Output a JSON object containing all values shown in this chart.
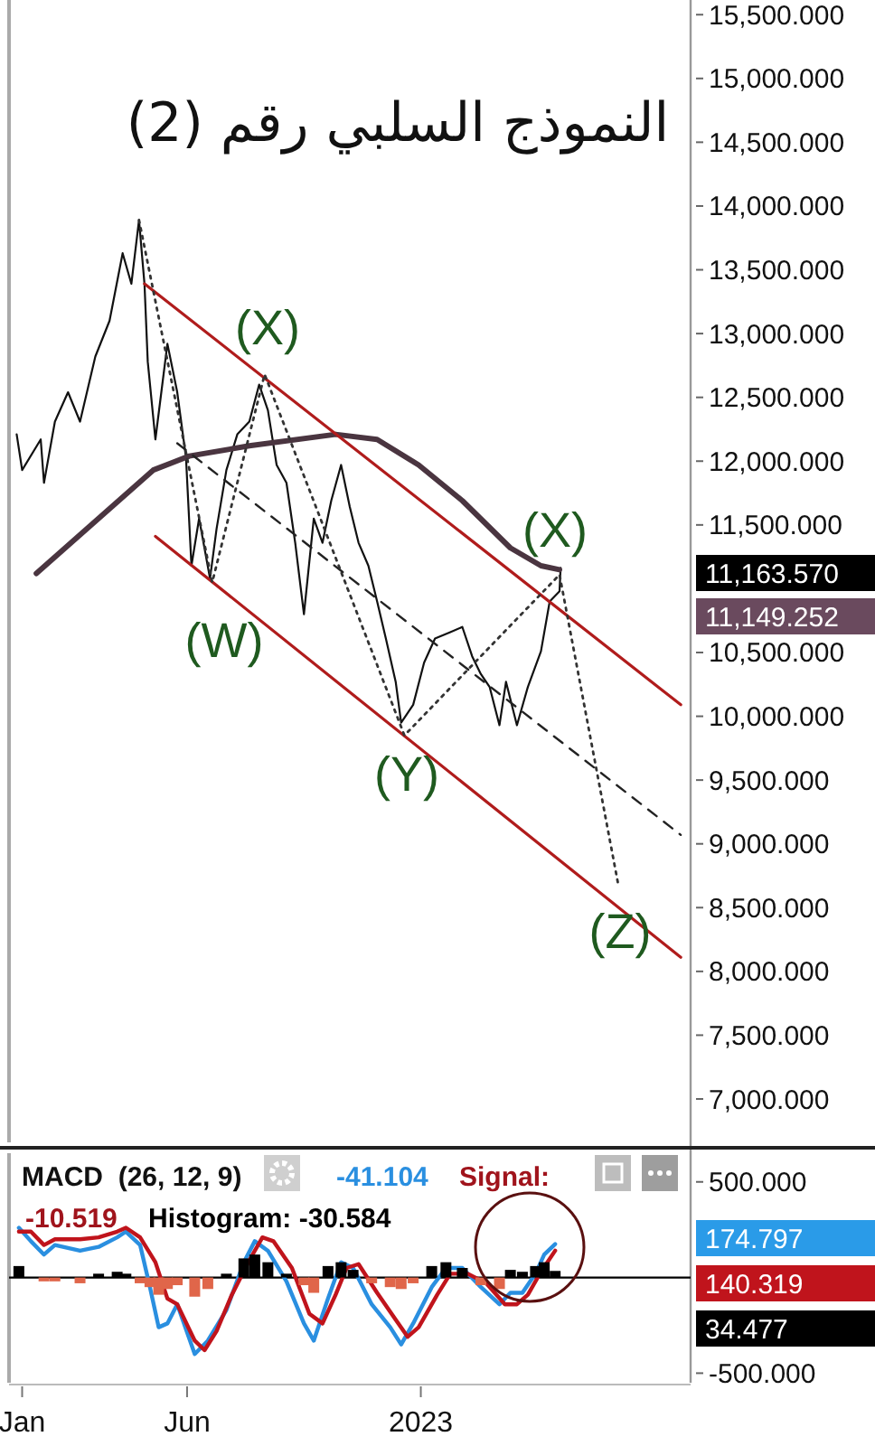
{
  "chart_data": [
    {
      "type": "line",
      "title": "النموذج السلبي رقم (2)",
      "xlim": [
        "2021-12-20",
        "2023-09-05"
      ],
      "ylim": [
        6660,
        15615
      ],
      "tick_labels": "y",
      "yticks": [
        {
          "value": 15500,
          "label": "15,500.000"
        },
        {
          "value": 15000,
          "label": "15,000.000"
        },
        {
          "value": 14500,
          "label": "14,500.000"
        },
        {
          "value": 14000,
          "label": "14,000.000"
        },
        {
          "value": 13500,
          "label": "13,500.000"
        },
        {
          "value": 13000,
          "label": "13,000.000"
        },
        {
          "value": 12500,
          "label": "12,500.000"
        },
        {
          "value": 12000,
          "label": "12,000.000"
        },
        {
          "value": 11500,
          "label": "11,500.000"
        },
        {
          "value": 10500,
          "label": "10,500.000"
        },
        {
          "value": 10000,
          "label": "10,000.000"
        },
        {
          "value": 9500,
          "label": "9,500.000"
        },
        {
          "value": 9000,
          "label": "9,000.000"
        },
        {
          "value": 8500,
          "label": "8,500.000"
        },
        {
          "value": 8000,
          "label": "8,000.000"
        },
        {
          "value": 7500,
          "label": "7,500.000"
        },
        {
          "value": 7000,
          "label": "7,000.000"
        }
      ],
      "series": [
        {
          "color": "#111111",
          "x": [
            "2021-12-27",
            "2022-01-01",
            "2022-01-18",
            "2022-01-21",
            "2022-01-31",
            "2022-02-12",
            "2022-02-23",
            "2022-03-09",
            "2022-03-22",
            "2022-04-03",
            "2022-04-11",
            "2022-04-18",
            "2022-04-23",
            "2022-04-26",
            "2022-05-03",
            "2022-05-14",
            "2022-05-23",
            "2022-05-31",
            "2022-06-05",
            "2022-06-12",
            "2022-06-22",
            "2022-06-28",
            "2022-07-07",
            "2022-07-17",
            "2022-07-28",
            "2022-08-06",
            "2022-08-14",
            "2022-08-22",
            "2022-08-31",
            "2022-09-08",
            "2022-09-16",
            "2022-09-25",
            "2022-10-03",
            "2022-10-11",
            "2022-10-20",
            "2022-10-28",
            "2022-11-05",
            "2022-11-14",
            "2022-11-22",
            "2022-11-30",
            "2022-12-09",
            "2022-12-14",
            "2022-12-25",
            "2023-01-04",
            "2023-01-14",
            "2023-01-28",
            "2023-02-08",
            "2023-02-17",
            "2023-02-25",
            "2023-03-05",
            "2023-03-14",
            "2023-03-20",
            "2023-03-30",
            "2023-04-09",
            "2023-04-21",
            "2023-04-29",
            "2023-05-08",
            "2023-05-09"
          ],
          "values": [
            12210,
            11930,
            12170,
            11830,
            12310,
            12540,
            12310,
            12820,
            13100,
            13630,
            13390,
            13890,
            13390,
            12780,
            12170,
            12920,
            12540,
            12030,
            11180,
            11550,
            11080,
            11470,
            11930,
            12210,
            12310,
            12600,
            12400,
            11970,
            11830,
            11360,
            10800,
            11550,
            11360,
            11690,
            11970,
            11640,
            11360,
            11180,
            10900,
            10610,
            10270,
            9950,
            10090,
            10420,
            10610,
            10660,
            10700,
            10470,
            10330,
            10230,
            9930,
            10270,
            9930,
            10230,
            10510,
            10900,
            10980,
            11163.57
          ]
        },
        {
          "color": "#4a3540",
          "x": [
            "2022-01-14",
            "2022-05-01",
            "2022-06-03",
            "2022-07-28",
            "2022-10-15",
            "2022-11-22",
            "2022-12-30",
            "2023-02-08",
            "2023-03-24",
            "2023-04-21",
            "2023-05-08"
          ],
          "values": [
            11120,
            11930,
            12040,
            12120,
            12210,
            12170,
            11970,
            11690,
            11320,
            11180,
            11149.252
          ]
        },
        {
          "color": "#b01c1c",
          "x": [
            "2022-04-23",
            "2023-08-27"
          ],
          "values": [
            13390,
            10090
          ]
        },
        {
          "color": "#b01c1c",
          "x": [
            "2022-05-03",
            "2023-08-27"
          ],
          "values": [
            11410,
            8110
          ]
        },
        {
          "color": "#222222",
          "line_style": "dashed",
          "x": [
            "2022-05-23",
            "2023-08-27"
          ],
          "values": [
            12140,
            9070
          ]
        },
        {
          "color": "#333333",
          "line_style": "dotted",
          "x": [
            "2022-04-18",
            "2022-06-24",
            "2022-08-11",
            "2022-12-17",
            "2023-05-08",
            "2023-07-01"
          ],
          "values": [
            13890,
            11050,
            12680,
            9850,
            11110,
            8670
          ]
        }
      ],
      "annotations": [
        "(X)",
        "(W)",
        "(Y)",
        "(X)",
        "(Z)",
        "11,163.570",
        "11,149.252"
      ]
    },
    {
      "type": "line",
      "title": "MACD  (26, 12, 9)",
      "xlim": [
        "2021-12-20",
        "2023-09-05"
      ],
      "ylim": [
        -550,
        650
      ],
      "xticks": [
        {
          "value": "2022-01-01",
          "label": "Jan"
        },
        {
          "value": "2022-06-01",
          "label": "Jun"
        },
        {
          "value": "2023-01-01",
          "label": "2023"
        }
      ],
      "yticks": [
        {
          "value": 500,
          "label": "500.000"
        },
        {
          "value": -500,
          "label": "-500.000"
        }
      ],
      "ref_lines": [
        {
          "axis": "y",
          "value": 0,
          "color": "#000000"
        }
      ],
      "series": [
        {
          "type": "bar",
          "x": [
            "2021-12-29",
            "2022-01-09",
            "2022-01-21",
            "2022-01-31",
            "2022-02-23",
            "2022-03-12",
            "2022-03-29",
            "2022-04-06",
            "2022-04-19",
            "2022-04-28",
            "2022-05-06",
            "2022-05-14",
            "2022-05-23",
            "2022-06-08",
            "2022-06-20",
            "2022-07-07",
            "2022-07-23",
            "2022-08-02",
            "2022-08-14",
            "2022-08-31",
            "2022-09-16",
            "2022-09-25",
            "2022-10-08",
            "2022-10-20",
            "2022-10-31",
            "2022-11-17",
            "2022-12-04",
            "2022-12-14",
            "2022-12-25",
            "2023-01-11",
            "2023-01-24",
            "2023-02-08",
            "2023-02-25",
            "2023-03-14",
            "2023-03-24",
            "2023-04-04",
            "2023-04-16",
            "2023-04-24",
            "2023-05-04"
          ],
          "values": [
            60,
            0,
            -20,
            -20,
            -30,
            20,
            30,
            20,
            -30,
            -50,
            -90,
            -60,
            -40,
            -100,
            -60,
            20,
            100,
            120,
            80,
            20,
            -40,
            -80,
            60,
            80,
            40,
            -30,
            -50,
            -60,
            -30,
            60,
            80,
            50,
            -40,
            -60,
            40,
            30,
            60,
            80,
            34.477
          ],
          "colors": [
            "#000000",
            "#000000",
            "#e0664a",
            "#e0664a",
            "#e0664a",
            "#000000",
            "#000000",
            "#000000",
            "#e0664a",
            "#e0664a",
            "#e0664a",
            "#e0664a",
            "#e0664a",
            "#e0664a",
            "#e0664a",
            "#000000",
            "#000000",
            "#000000",
            "#000000",
            "#000000",
            "#e0664a",
            "#e0664a",
            "#000000",
            "#000000",
            "#000000",
            "#e0664a",
            "#e0664a",
            "#e0664a",
            "#e0664a",
            "#000000",
            "#000000",
            "#000000",
            "#e0664a",
            "#e0664a",
            "#000000",
            "#000000",
            "#000000",
            "#000000",
            "#000000"
          ]
        },
        {
          "color": "#2a8fe0",
          "x": [
            "2021-12-29",
            "2022-01-09",
            "2022-01-21",
            "2022-01-31",
            "2022-02-23",
            "2022-03-12",
            "2022-03-29",
            "2022-04-06",
            "2022-04-19",
            "2022-04-28",
            "2022-05-06",
            "2022-05-14",
            "2022-05-23",
            "2022-06-08",
            "2022-06-20",
            "2022-07-07",
            "2022-07-23",
            "2022-08-02",
            "2022-08-14",
            "2022-08-31",
            "2022-09-16",
            "2022-09-25",
            "2022-10-08",
            "2022-10-20",
            "2022-10-31",
            "2022-11-17",
            "2022-12-04",
            "2022-12-14",
            "2022-12-25",
            "2023-01-11",
            "2023-01-24",
            "2023-02-08",
            "2023-02-25",
            "2023-03-14",
            "2023-03-24",
            "2023-04-04",
            "2023-04-16",
            "2023-04-24",
            "2023-05-04"
          ],
          "values": [
            260,
            190,
            120,
            170,
            140,
            160,
            210,
            240,
            170,
            -50,
            -260,
            -240,
            -140,
            -400,
            -330,
            -170,
            80,
            190,
            140,
            -20,
            -240,
            -330,
            -110,
            80,
            50,
            -140,
            -260,
            -350,
            -240,
            -50,
            50,
            50,
            -50,
            -140,
            -80,
            -80,
            20,
            120,
            174.797
          ]
        },
        {
          "color": "#c0141c",
          "x": [
            "2021-12-29",
            "2022-01-09",
            "2022-01-21",
            "2022-01-31",
            "2022-02-23",
            "2022-03-12",
            "2022-03-29",
            "2022-04-06",
            "2022-04-19",
            "2022-05-03",
            "2022-05-14",
            "2022-05-23",
            "2022-06-08",
            "2022-06-17",
            "2022-06-28",
            "2022-07-12",
            "2022-07-28",
            "2022-08-09",
            "2022-08-19",
            "2022-09-05",
            "2022-09-21",
            "2022-10-03",
            "2022-10-15",
            "2022-10-25",
            "2022-11-05",
            "2022-11-22",
            "2022-12-09",
            "2022-12-20",
            "2022-12-30",
            "2023-01-16",
            "2023-01-28",
            "2023-02-13",
            "2023-03-02",
            "2023-03-19",
            "2023-03-30",
            "2023-04-09",
            "2023-04-21",
            "2023-05-04"
          ],
          "values": [
            240,
            240,
            170,
            200,
            200,
            210,
            240,
            260,
            210,
            80,
            -110,
            -140,
            -330,
            -380,
            -280,
            -90,
            90,
            210,
            190,
            50,
            -190,
            -240,
            -90,
            50,
            70,
            -80,
            -220,
            -310,
            -260,
            -90,
            20,
            20,
            -30,
            -140,
            -140,
            -90,
            30,
            140.319
          ]
        }
      ],
      "annotations": [
        "-41.104",
        "Signal:",
        "-10.519",
        "Histogram: -30.584",
        "174.797",
        "140.319",
        "34.477"
      ]
    }
  ]
}
